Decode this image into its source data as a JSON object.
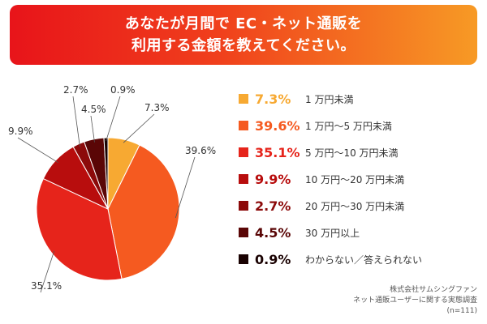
{
  "title": {
    "line1": "あなたが月間で EC・ネット通販を",
    "line2": "利用する金額を教えてください。"
  },
  "chart_data": {
    "type": "pie",
    "slices": [
      {
        "label": "1 万円未満",
        "value": 7.3,
        "text": "7.3%",
        "color": "#f7a932"
      },
      {
        "label": "1 万円〜5 万円未満",
        "value": 39.6,
        "text": "39.6%",
        "color": "#f55a20"
      },
      {
        "label": "5 万円〜10 万円未満",
        "value": 35.1,
        "text": "35.1%",
        "color": "#e6241b"
      },
      {
        "label": "10 万円〜20 万円未満",
        "value": 9.9,
        "text": "9.9%",
        "color": "#b80d0d"
      },
      {
        "label": "20 万円〜30 万円未満",
        "value": 2.7,
        "text": "2.7%",
        "color": "#8c0a0a"
      },
      {
        "label": "30 万円以上",
        "value": 4.5,
        "text": "4.5%",
        "color": "#5a0606"
      },
      {
        "label": "わからない／答えられない",
        "value": 0.9,
        "text": "0.9%",
        "color": "#1a0202"
      }
    ]
  },
  "source": {
    "line1": "株式会社サムシングファン",
    "line2": "ネット通販ユーザーに関する実態調査",
    "line3": "(n=111)"
  }
}
